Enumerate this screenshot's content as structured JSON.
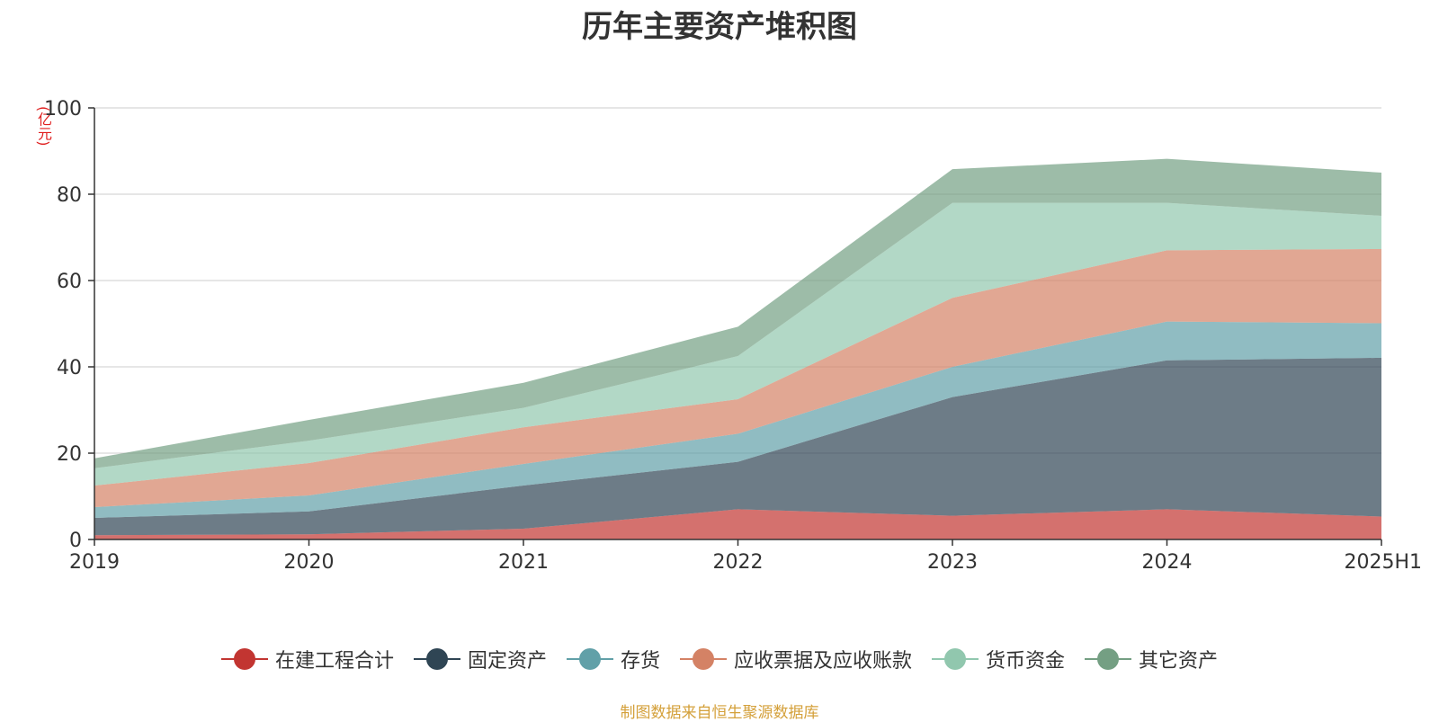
{
  "chart_data": {
    "type": "area",
    "stacked": true,
    "title": "历年主要资产堆积图",
    "yunit": "(亿元)",
    "source": "制图数据来自恒生聚源数据库",
    "categories": [
      "2019",
      "2020",
      "2021",
      "2022",
      "2023",
      "2024",
      "2025H1"
    ],
    "ylim": [
      0,
      100
    ],
    "yticks": [
      0,
      20,
      40,
      60,
      80,
      100
    ],
    "grid": true,
    "legend_position": "bottom",
    "series": [
      {
        "name": "在建工程合计",
        "color": "#c23531",
        "values": [
          1.0,
          1.2,
          2.5,
          7.0,
          5.5,
          7.0,
          5.3
        ]
      },
      {
        "name": "固定资产",
        "color": "#2f4554",
        "values": [
          4.0,
          5.3,
          10.0,
          11.0,
          27.5,
          34.5,
          36.8
        ]
      },
      {
        "name": "存货",
        "color": "#61a0a8",
        "values": [
          2.5,
          3.7,
          5.0,
          6.5,
          7.0,
          9.0,
          8.0
        ]
      },
      {
        "name": "应收票据及应收账款",
        "color": "#d48265",
        "values": [
          5.0,
          7.5,
          8.5,
          8.0,
          16.0,
          16.5,
          17.2
        ]
      },
      {
        "name": "货币资金",
        "color": "#91c7ae",
        "values": [
          4.0,
          5.2,
          4.5,
          10.0,
          22.0,
          11.0,
          7.7
        ]
      },
      {
        "name": "其它资产",
        "color": "#749f83",
        "values": [
          2.3,
          4.8,
          5.8,
          6.8,
          7.8,
          10.2,
          10.0
        ]
      }
    ]
  }
}
